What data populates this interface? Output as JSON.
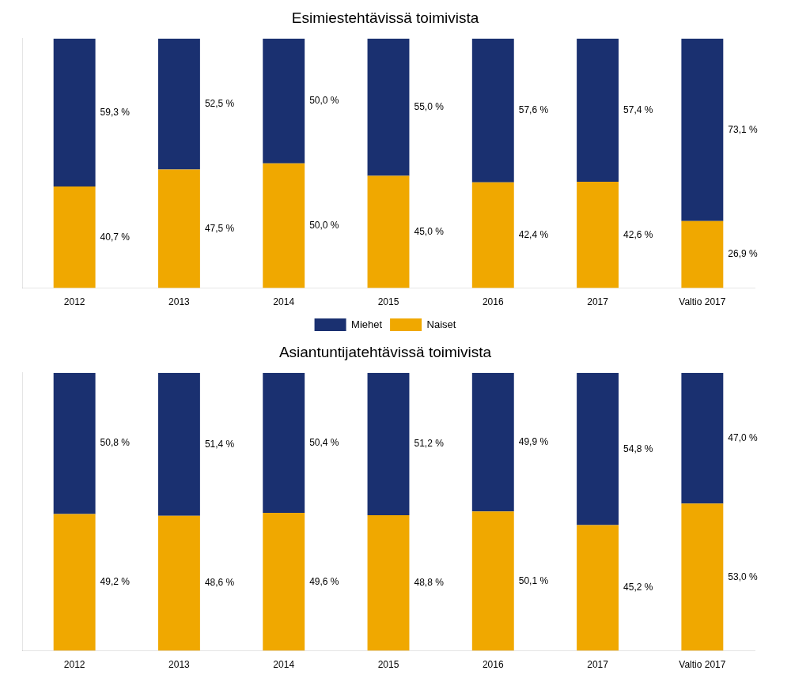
{
  "chart_data": [
    {
      "type": "bar",
      "title": "Esimiestehtävissä toimivista",
      "categories": [
        "2012",
        "2013",
        "2014",
        "2015",
        "2016",
        "2017",
        "Valtio 2017"
      ],
      "series": [
        {
          "name": "Naiset",
          "color": "#f0a800",
          "values": [
            40.7,
            47.5,
            50.0,
            45.0,
            42.4,
            42.6,
            26.9
          ],
          "value_labels": [
            "40,7 %",
            "47,5 %",
            "50,0 %",
            "45,0 %",
            "42,4 %",
            "42,6 %",
            "26,9 %"
          ]
        },
        {
          "name": "Miehet",
          "color": "#1a3070",
          "values": [
            59.3,
            52.5,
            50.0,
            55.0,
            57.6,
            57.4,
            73.1
          ],
          "value_labels": [
            "59,3 %",
            "52,5 %",
            "50,0 %",
            "55,0 %",
            "57,6 %",
            "57,4 %",
            "73,1 %"
          ]
        }
      ],
      "ylim": [
        0,
        100
      ],
      "yticks": [],
      "stacked": true,
      "grid": false,
      "data_labels": true,
      "tick_labels": "x",
      "legend": "bottom"
    },
    {
      "type": "bar",
      "title": "Asiantuntijatehtävissä toimivista",
      "categories": [
        "2012",
        "2013",
        "2014",
        "2015",
        "2016",
        "2017",
        "Valtio 2017"
      ],
      "series": [
        {
          "name": "Naiset",
          "color": "#f0a800",
          "values": [
            49.2,
            48.6,
            49.6,
            48.8,
            50.1,
            45.2,
            53.0
          ],
          "value_labels": [
            "49,2 %",
            "48,6 %",
            "49,6 %",
            "48,8 %",
            "50,1 %",
            "45,2 %",
            "53,0 %"
          ]
        },
        {
          "name": "Miehet",
          "color": "#1a3070",
          "values": [
            50.8,
            51.4,
            50.4,
            51.2,
            49.9,
            54.8,
            47.0
          ],
          "value_labels": [
            "50,8 %",
            "51,4 %",
            "50,4 %",
            "51,2 %",
            "49,9 %",
            "54,8 %",
            "47,0 %"
          ]
        }
      ],
      "ylim": [
        0,
        100
      ],
      "yticks": [],
      "stacked": true,
      "grid": false,
      "data_labels": true,
      "tick_labels": "x"
    }
  ]
}
